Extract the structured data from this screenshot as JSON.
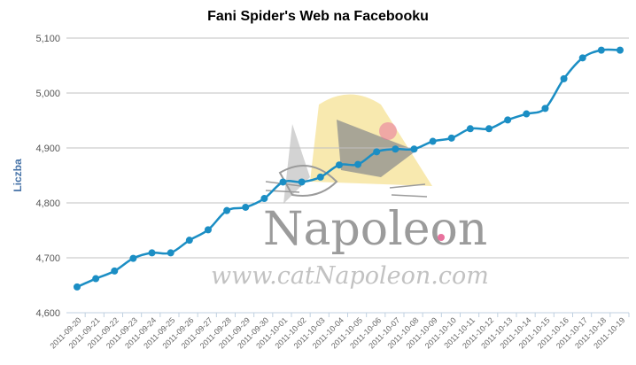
{
  "chart_data": {
    "type": "line",
    "title": "Fani Spider's Web na Facebooku",
    "ylabel": "Liczba",
    "xlabel": "",
    "ylim": [
      4600,
      5100
    ],
    "yticks": [
      "4,600",
      "4,700",
      "4,800",
      "4,900",
      "5,000",
      "5,100"
    ],
    "ytick_values": [
      4600,
      4700,
      4800,
      4900,
      5000,
      5100
    ],
    "grid": true,
    "legend": "none",
    "line_color": "#1b8ec4",
    "date_labels": [
      "2011-09-20",
      "2011-09-21",
      "2011-09-22",
      "2011-09-23",
      "2011-09-24",
      "2011-09-25",
      "2011-09-26",
      "2011-09-27",
      "2011-09-28",
      "2011-09-29",
      "2011-09-30",
      "2011-10-01",
      "2011-10-02",
      "2011-10-03",
      "2011-10-04",
      "2011-10-05",
      "2011-10-06",
      "2011-10-07",
      "2011-10-08",
      "2011-10-09",
      "2011-10-10",
      "2011-10-11",
      "2011-10-12",
      "2011-10-13",
      "2011-10-14",
      "2011-10-15",
      "2011-10-16",
      "2011-10-17",
      "2011-10-18",
      "2011-10-19"
    ],
    "points": [
      {
        "x": "2011-09-20",
        "y": 4647
      },
      {
        "x": "2011-09-20",
        "y": 4662
      },
      {
        "x": "2011-09-21",
        "y": 4676
      },
      {
        "x": "2011-09-22",
        "y": 4699
      },
      {
        "x": "2011-09-23",
        "y": 4709
      },
      {
        "x": "2011-09-24",
        "y": 4709
      },
      {
        "x": "2011-09-25",
        "y": 4732
      },
      {
        "x": "2011-09-26",
        "y": 4751
      },
      {
        "x": "2011-09-27",
        "y": 4786
      },
      {
        "x": "2011-09-28",
        "y": 4792
      },
      {
        "x": "2011-09-29",
        "y": 4808
      },
      {
        "x": "2011-09-30",
        "y": 4838
      },
      {
        "x": "2011-10-01",
        "y": 4838
      },
      {
        "x": "2011-10-02",
        "y": 4847
      },
      {
        "x": "2011-10-03",
        "y": 4869
      },
      {
        "x": "2011-10-04",
        "y": 4870
      },
      {
        "x": "2011-10-05",
        "y": 4893
      },
      {
        "x": "2011-10-06",
        "y": 4898
      },
      {
        "x": "2011-10-07",
        "y": 4898
      },
      {
        "x": "2011-10-08",
        "y": 4912
      },
      {
        "x": "2011-10-09",
        "y": 4918
      },
      {
        "x": "2011-10-10",
        "y": 4935
      },
      {
        "x": "2011-10-11",
        "y": 4935
      },
      {
        "x": "2011-10-12",
        "y": 4951
      },
      {
        "x": "2011-10-13",
        "y": 4962
      },
      {
        "x": "2011-10-14",
        "y": 4972
      },
      {
        "x": "2011-10-15",
        "y": 5026
      },
      {
        "x": "2011-10-16",
        "y": 5064
      },
      {
        "x": "2011-10-17",
        "y": 5078
      },
      {
        "x": "2011-10-18",
        "y": 5078
      }
    ]
  },
  "watermark": {
    "brand": "Napoleon",
    "url": "www.catNapoleon.com",
    "colors": {
      "gray": "#8a8a8a",
      "hat": "#f4dc7a",
      "pink": "#e45a8c"
    }
  }
}
